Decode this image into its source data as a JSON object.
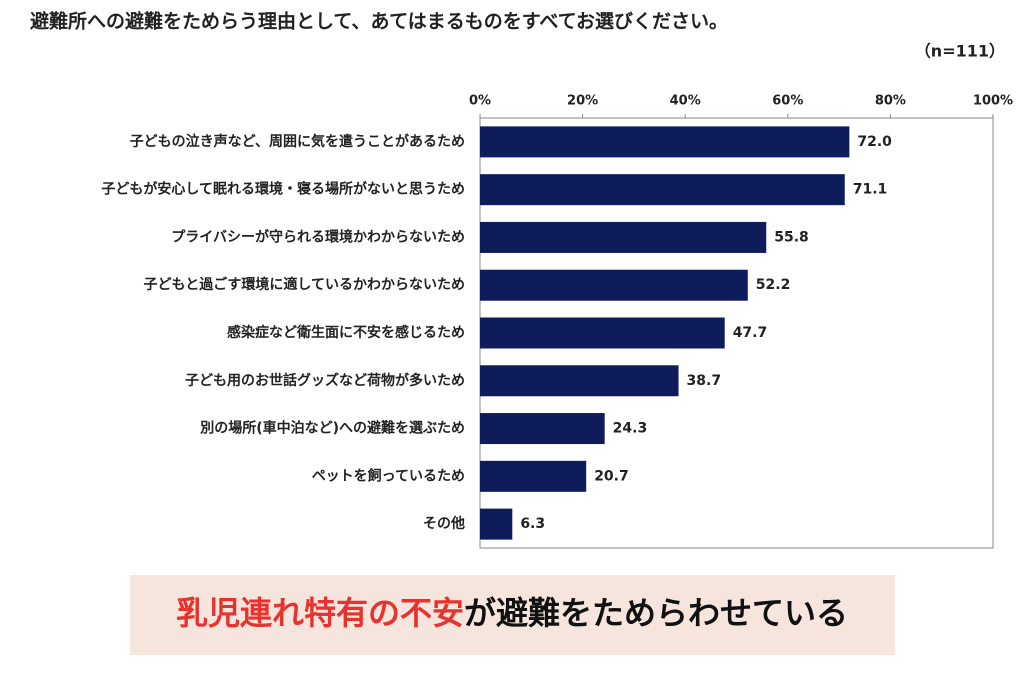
{
  "chart_data": {
    "type": "bar",
    "orientation": "horizontal",
    "title": "避難所への避難をためらう理由として、あてはまるものをすべてお選びください。",
    "subtitle": "（n=111）",
    "categories": [
      "子どもの泣き声など、周囲に気を遣うことがあるため",
      "子どもが安心して眠れる環境・寝る場所がないと思うため",
      "プライバシーが守られる環境かわからないため",
      "子どもと過ごす環境に適しているかわからないため",
      "感染症など衛生面に不安を感じるため",
      "子ども用のお世話グッズなど荷物が多いため",
      "別の場所(車中泊など)への避難を選ぶため",
      "ペットを飼っているため",
      "その他"
    ],
    "values": [
      72.0,
      71.1,
      55.8,
      52.2,
      47.7,
      38.7,
      24.3,
      20.7,
      6.3
    ],
    "value_labels": [
      "72.0",
      "71.1",
      "55.8",
      "52.2",
      "47.7",
      "38.7",
      "24.3",
      "20.7",
      "6.3"
    ],
    "color": "#0f1c5c",
    "xlim": [
      0,
      100
    ],
    "xticks": [
      {
        "value": 0,
        "label": "0%"
      },
      {
        "value": 20,
        "label": "20%"
      },
      {
        "value": 40,
        "label": "40%"
      },
      {
        "value": 60,
        "label": "60%"
      },
      {
        "value": 80,
        "label": "80%"
      },
      {
        "value": 100,
        "label": "100%"
      }
    ],
    "grid": false,
    "annotation": [
      "乳児連れ特有の不安",
      "が避難をためらわせている"
    ]
  }
}
